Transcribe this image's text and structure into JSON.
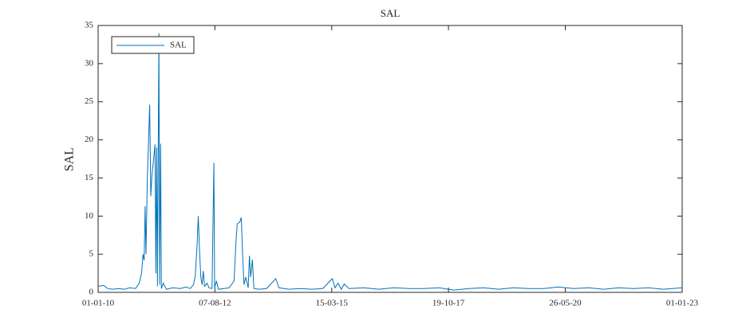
{
  "chart_data": {
    "type": "line",
    "title": "SAL",
    "y_label": "SAL",
    "xlim": [
      "2010-01-01",
      "2023-01-01"
    ],
    "xticks": [
      {
        "value": "2010-01-01",
        "label": "01-01-10"
      },
      {
        "value": "2012-08-07",
        "label": "07-08-12"
      },
      {
        "value": "2015-03-15",
        "label": "15-03-15"
      },
      {
        "value": "2017-10-19",
        "label": "19-10-17"
      },
      {
        "value": "2020-05-26",
        "label": "26-05-20"
      },
      {
        "value": "2023-01-01",
        "label": "01-01-23"
      }
    ],
    "ylim": [
      0,
      35
    ],
    "yticks": [
      0,
      5,
      10,
      15,
      20,
      25,
      30,
      35
    ],
    "legend": "upper left",
    "x": [
      "2010-01-01",
      "2010-02-15",
      "2010-03-20",
      "2010-05-01",
      "2010-06-15",
      "2010-08-01",
      "2010-09-15",
      "2010-11-01",
      "2010-12-01",
      "2010-12-20",
      "2011-01-01",
      "2011-01-10",
      "2011-01-18",
      "2011-01-25",
      "2011-02-05",
      "2011-02-24",
      "2011-03-05",
      "2011-03-15",
      "2011-03-28",
      "2011-04-08",
      "2011-04-15",
      "2011-04-22",
      "2011-04-28",
      "2011-05-10",
      "2011-05-16",
      "2011-05-24",
      "2011-05-30",
      "2011-06-15",
      "2011-07-10",
      "2011-09-01",
      "2011-11-01",
      "2011-12-15",
      "2012-01-20",
      "2012-02-15",
      "2012-03-01",
      "2012-03-15",
      "2012-03-25",
      "2012-04-05",
      "2012-04-15",
      "2012-04-25",
      "2012-05-05",
      "2012-05-15",
      "2012-06-05",
      "2012-06-20",
      "2012-07-15",
      "2012-07-30",
      "2012-08-05",
      "2012-08-20",
      "2012-09-05",
      "2012-10-20",
      "2012-12-01",
      "2013-01-10",
      "2013-01-25",
      "2013-02-05",
      "2013-02-25",
      "2013-03-10",
      "2013-03-20",
      "2013-04-01",
      "2013-04-15",
      "2013-05-05",
      "2013-05-15",
      "2013-05-25",
      "2013-06-08",
      "2013-06-20",
      "2013-08-01",
      "2013-10-01",
      "2013-12-15",
      "2014-01-10",
      "2014-04-01",
      "2014-07-01",
      "2014-10-01",
      "2015-01-01",
      "2015-03-20",
      "2015-04-10",
      "2015-05-05",
      "2015-06-01",
      "2015-06-25",
      "2015-08-01",
      "2015-12-01",
      "2016-04-01",
      "2016-08-01",
      "2016-12-01",
      "2017-04-01",
      "2017-08-01",
      "2017-12-01",
      "2018-04-01",
      "2018-08-01",
      "2018-12-01",
      "2019-04-01",
      "2019-08-01",
      "2019-12-01",
      "2020-04-01",
      "2020-08-01",
      "2020-12-01",
      "2021-04-01",
      "2021-08-01",
      "2021-12-01",
      "2022-04-01",
      "2022-08-01",
      "2023-01-01"
    ],
    "series": [
      {
        "name": "SAL",
        "color": "#0072bd",
        "values": [
          0.8,
          0.9,
          0.5,
          0.4,
          0.5,
          0.4,
          0.6,
          0.5,
          1.2,
          2.5,
          5.0,
          4.2,
          11.3,
          5.0,
          15.0,
          24.6,
          12.6,
          15.5,
          17.5,
          19.4,
          2.5,
          19.0,
          0.8,
          34.0,
          1.0,
          19.5,
          0.5,
          1.2,
          0.4,
          0.6,
          0.5,
          0.7,
          0.5,
          1.0,
          2.2,
          6.0,
          10.0,
          5.2,
          2.0,
          1.0,
          2.8,
          0.8,
          1.2,
          0.6,
          0.5,
          17.0,
          0.6,
          1.5,
          0.4,
          0.5,
          0.6,
          1.5,
          6.5,
          9.0,
          9.2,
          9.8,
          5.0,
          1.0,
          2.0,
          0.6,
          4.8,
          2.0,
          4.3,
          0.5,
          0.4,
          0.5,
          1.8,
          0.6,
          0.4,
          0.5,
          0.4,
          0.5,
          1.8,
          0.6,
          1.2,
          0.4,
          1.1,
          0.5,
          0.6,
          0.4,
          0.6,
          0.5,
          0.5,
          0.6,
          0.3,
          0.5,
          0.6,
          0.4,
          0.6,
          0.5,
          0.5,
          0.7,
          0.5,
          0.6,
          0.4,
          0.6,
          0.5,
          0.6,
          0.4,
          0.6
        ]
      }
    ]
  }
}
